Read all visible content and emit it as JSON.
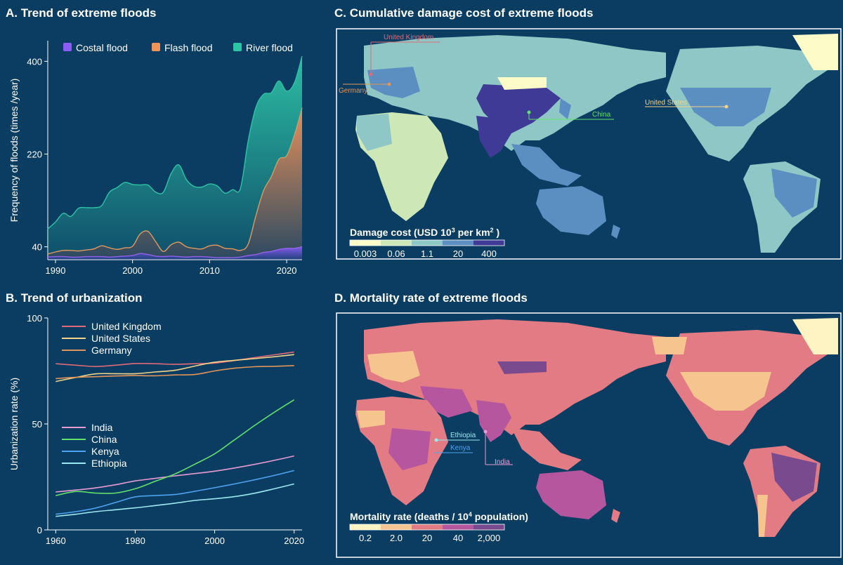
{
  "panels": {
    "a_title": "A. Trend of extreme floods",
    "b_title": "B. Trend of urbanization",
    "c_title": "C. Cumulative damage cost of extreme floods",
    "d_title": "D. Mortality rate of extreme floods"
  },
  "chart_data": [
    {
      "type": "area",
      "stacked": true,
      "title": "A. Trend of extreme floods",
      "ylabel": "Frequency of floods (times /year)",
      "xlabel": "",
      "xlim": [
        1989,
        2022
      ],
      "ylim": [
        15,
        440
      ],
      "xticks": [
        1990,
        2000,
        2010,
        2020
      ],
      "yticks": [
        40,
        220,
        400
      ],
      "legend_position": "top",
      "x": [
        1989,
        1990,
        1991,
        1992,
        1993,
        1994,
        1995,
        1996,
        1997,
        1998,
        1999,
        2000,
        2001,
        2002,
        2003,
        2004,
        2005,
        2006,
        2007,
        2008,
        2009,
        2010,
        2011,
        2012,
        2013,
        2014,
        2015,
        2016,
        2017,
        2018,
        2019,
        2020,
        2021,
        2022
      ],
      "series": [
        {
          "name": "Costal flood",
          "color": "#8b5cf6",
          "values": [
            5,
            6,
            6,
            5,
            5,
            6,
            6,
            6,
            5,
            6,
            7,
            8,
            12,
            10,
            7,
            6,
            7,
            6,
            5,
            6,
            6,
            5,
            4,
            4,
            4,
            5,
            8,
            10,
            14,
            16,
            20,
            22,
            22,
            25
          ]
        },
        {
          "name": "Flash flood",
          "color": "#f0955a",
          "values": [
            6,
            9,
            12,
            13,
            12,
            13,
            15,
            21,
            18,
            14,
            16,
            18,
            38,
            45,
            28,
            10,
            22,
            28,
            20,
            16,
            15,
            22,
            24,
            18,
            17,
            13,
            22,
            75,
            120,
            145,
            175,
            180,
            220,
            270
          ]
        },
        {
          "name": "River flood",
          "color": "#2ec4a6",
          "values": [
            49,
            58,
            72,
            66,
            83,
            82,
            80,
            78,
            108,
            120,
            127,
            120,
            95,
            90,
            96,
            115,
            138,
            150,
            130,
            120,
            120,
            120,
            115,
            107,
            115,
            120,
            200,
            210,
            187,
            163,
            152,
            125,
            101,
            100
          ]
        }
      ]
    },
    {
      "type": "line",
      "title": "B. Trend of urbanization",
      "ylabel": "Urbanization rate (%)",
      "xlabel": "",
      "xlim": [
        1958,
        2022
      ],
      "ylim": [
        0,
        100
      ],
      "xticks": [
        1960,
        1980,
        2000,
        2020
      ],
      "yticks": [
        0,
        50,
        100
      ],
      "x": [
        1960,
        1965,
        1970,
        1975,
        1980,
        1985,
        1990,
        1995,
        2000,
        2005,
        2010,
        2015,
        2020
      ],
      "series": [
        {
          "name": "United Kingdom",
          "color": "#e06a78",
          "values": [
            78.4,
            77.7,
            77.1,
            77.7,
            78.5,
            78.4,
            78.1,
            78.4,
            78.7,
            79.9,
            81.3,
            82.6,
            83.9
          ]
        },
        {
          "name": "United States",
          "color": "#f3d38a",
          "values": [
            70.0,
            71.9,
            73.6,
            73.7,
            73.7,
            74.5,
            75.3,
            77.3,
            79.1,
            80.0,
            80.8,
            81.7,
            82.7
          ]
        },
        {
          "name": "Germany",
          "color": "#e0955a",
          "values": [
            71.4,
            72.0,
            72.3,
            72.6,
            72.8,
            72.7,
            73.1,
            73.3,
            75.0,
            76.3,
            77.0,
            77.2,
            77.5
          ]
        },
        {
          "name": "India",
          "color": "#e79bd2",
          "values": [
            17.9,
            18.8,
            19.8,
            21.3,
            23.1,
            24.3,
            25.5,
            26.6,
            27.7,
            29.2,
            30.9,
            32.8,
            34.9
          ]
        },
        {
          "name": "China",
          "color": "#63e06a",
          "values": [
            16.2,
            18.1,
            17.4,
            17.4,
            19.4,
            22.9,
            26.4,
            31.0,
            35.9,
            42.5,
            49.2,
            55.5,
            61.4
          ]
        },
        {
          "name": "Kenya",
          "color": "#4ea3f0",
          "values": [
            7.4,
            8.6,
            10.3,
            12.9,
            15.6,
            16.2,
            16.7,
            18.2,
            19.9,
            21.7,
            23.6,
            25.7,
            28.0
          ]
        },
        {
          "name": "Ethiopia",
          "color": "#9ce8f0",
          "values": [
            6.4,
            7.4,
            8.6,
            9.5,
            10.4,
            11.5,
            12.6,
            13.9,
            14.7,
            15.7,
            17.3,
            19.4,
            21.7
          ]
        }
      ]
    }
  ],
  "maps": {
    "c": {
      "legend_title": "Damage cost (USD 10",
      "legend_sup": "3",
      "legend_title_mid": " per km",
      "legend_sup2": "2",
      "legend_title_end": " )",
      "legend_colors": [
        "#fdfbc8",
        "#cde8b6",
        "#8fc7c6",
        "#5b8fc2",
        "#3e3a96"
      ],
      "legend_ticks": [
        "0.003",
        "0.06",
        "1.1",
        "20",
        "400"
      ],
      "labels": [
        {
          "text": "United Kingdom",
          "color": "#e06a78"
        },
        {
          "text": "Germany",
          "color": "#e0955a"
        },
        {
          "text": "China",
          "color": "#63e06a"
        },
        {
          "text": "United States",
          "color": "#f3d38a"
        }
      ]
    },
    "d": {
      "legend_title": "Mortality rate (deaths / 10",
      "legend_sup": "4",
      "legend_title_end": " population)",
      "legend_colors": [
        "#fdf3c3",
        "#f6c48f",
        "#e27b84",
        "#b6569f",
        "#7a4a8f"
      ],
      "legend_ticks": [
        "0.2",
        "2.0",
        "20",
        "40",
        "2,000"
      ],
      "labels": [
        {
          "text": "Ethiopia",
          "color": "#9ce8f0"
        },
        {
          "text": "Kenya",
          "color": "#4ea3f0"
        },
        {
          "text": "India",
          "color": "#e79bd2"
        }
      ]
    }
  }
}
